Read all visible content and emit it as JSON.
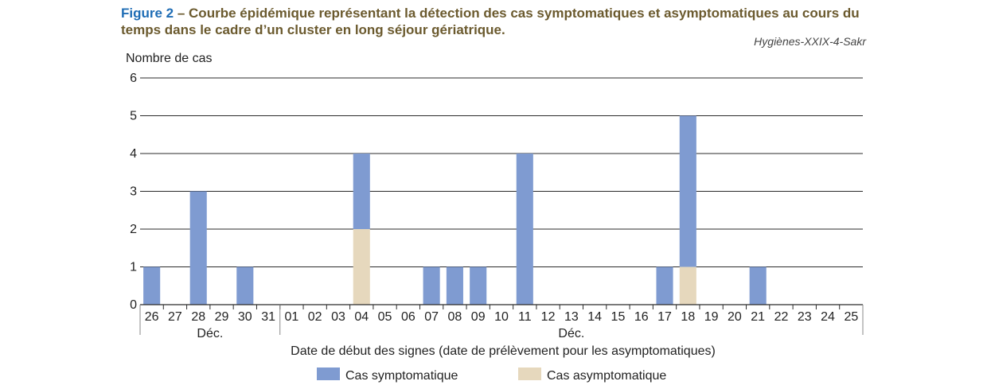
{
  "figure": {
    "label": "Figure 2",
    "separator": " – ",
    "title": "Courbe épidémique représentant la détection des cas symptomatiques et asymptomatiques au cours du temps dans le cadre d’un cluster en long séjour gériatrique.",
    "credit": "Hygiènes-XXIX-4-Sakr"
  },
  "chart_data": {
    "type": "bar",
    "stacked": true,
    "ylabel": "Nombre de cas",
    "xlabel": "Date de début des signes (date de prélèvement pour les asymptomatiques)",
    "ylim": [
      0,
      6
    ],
    "yticks": [
      0,
      1,
      2,
      3,
      4,
      5,
      6
    ],
    "grid": true,
    "categories": [
      "26",
      "27",
      "28",
      "29",
      "30",
      "31",
      "01",
      "02",
      "03",
      "04",
      "05",
      "06",
      "07",
      "08",
      "09",
      "10",
      "11",
      "12",
      "13",
      "14",
      "15",
      "16",
      "17",
      "18",
      "19",
      "20",
      "21",
      "22",
      "23",
      "24",
      "25"
    ],
    "month_groups": [
      {
        "label": "Déc.",
        "from": "26",
        "to": "31"
      },
      {
        "label": "Déc.",
        "from": "01",
        "to": "25"
      }
    ],
    "series": [
      {
        "name": "Cas asymptomatique",
        "color": "#e6d8bd",
        "values": [
          0,
          0,
          0,
          0,
          0,
          0,
          0,
          0,
          0,
          2,
          0,
          0,
          0,
          0,
          0,
          0,
          0,
          0,
          0,
          0,
          0,
          0,
          0,
          1,
          0,
          0,
          0,
          0,
          0,
          0,
          0
        ]
      },
      {
        "name": "Cas symptomatique",
        "color": "#7f9bd1",
        "values": [
          1,
          0,
          3,
          0,
          1,
          0,
          0,
          0,
          0,
          2,
          0,
          0,
          1,
          1,
          1,
          0,
          4,
          0,
          0,
          0,
          0,
          0,
          1,
          4,
          0,
          0,
          1,
          0,
          0,
          0,
          0
        ]
      }
    ],
    "legend": {
      "position": "bottom",
      "order": [
        "Cas symptomatique",
        "Cas asymptomatique"
      ]
    }
  }
}
